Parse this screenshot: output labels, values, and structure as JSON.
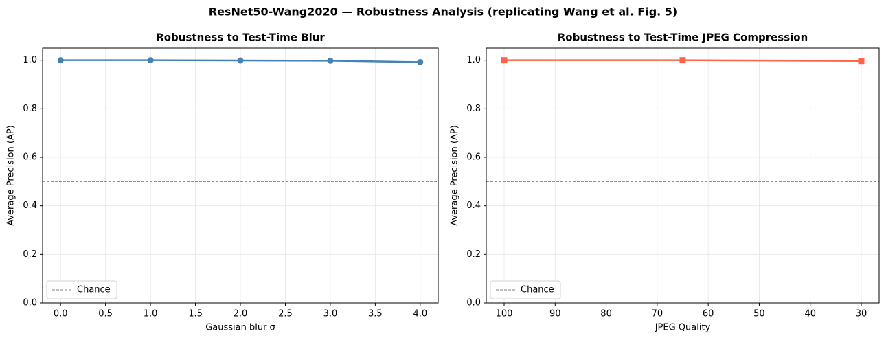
{
  "title": "ResNet50-Wang2020 — Robustness Analysis (replicating Wang et al. Fig. 5)",
  "chart_data": [
    {
      "type": "line",
      "title": "Robustness to Test-Time Blur",
      "x_label": "Gaussian blur σ",
      "y_label": "Average Precision (AP)",
      "x": [
        0,
        1,
        2,
        3,
        4
      ],
      "series": [
        {
          "name": "AP",
          "color": "#4682b4",
          "marker": "circle",
          "values": [
            1.0,
            1.0,
            0.999,
            0.998,
            0.992
          ]
        }
      ],
      "xlim": [
        -0.2,
        4.2
      ],
      "xticks": [
        {
          "value": 0,
          "label": "0.0"
        },
        0.5,
        {
          "value": 1,
          "label": "1.0"
        },
        1.5,
        {
          "value": 2,
          "label": "2.0"
        },
        2.5,
        {
          "value": 3,
          "label": "3.0"
        },
        3.5,
        {
          "value": 4,
          "label": "4.0"
        }
      ],
      "ylim": [
        0,
        1.05
      ],
      "yticks": [
        {
          "value": 0,
          "label": "0.0"
        },
        0.2,
        0.4,
        0.6,
        0.8,
        {
          "value": 1,
          "label": "1.0"
        }
      ],
      "reference_line": {
        "name": "Chance",
        "y": 0.5,
        "color": "#808080",
        "style": "dashed"
      },
      "grid": true,
      "legend": "lower left"
    },
    {
      "type": "line",
      "title": "Robustness to Test-Time JPEG Compression",
      "x_label": "JPEG Quality",
      "y_label": "Average Precision (AP)",
      "x": [
        100,
        65,
        30
      ],
      "series": [
        {
          "name": "AP",
          "color": "#ff6347",
          "marker": "square",
          "values": [
            1.0,
            1.0,
            0.997
          ]
        }
      ],
      "xlim": [
        103.5,
        26.5
      ],
      "xticks": [
        100,
        90,
        80,
        70,
        60,
        50,
        40,
        30
      ],
      "ylim": [
        0,
        1.05
      ],
      "yticks": [
        {
          "value": 0,
          "label": "0.0"
        },
        0.2,
        0.4,
        0.6,
        0.8,
        {
          "value": 1,
          "label": "1.0"
        }
      ],
      "reference_line": {
        "name": "Chance",
        "y": 0.5,
        "color": "#808080",
        "style": "dashed"
      },
      "grid": true,
      "legend": "lower left"
    }
  ]
}
